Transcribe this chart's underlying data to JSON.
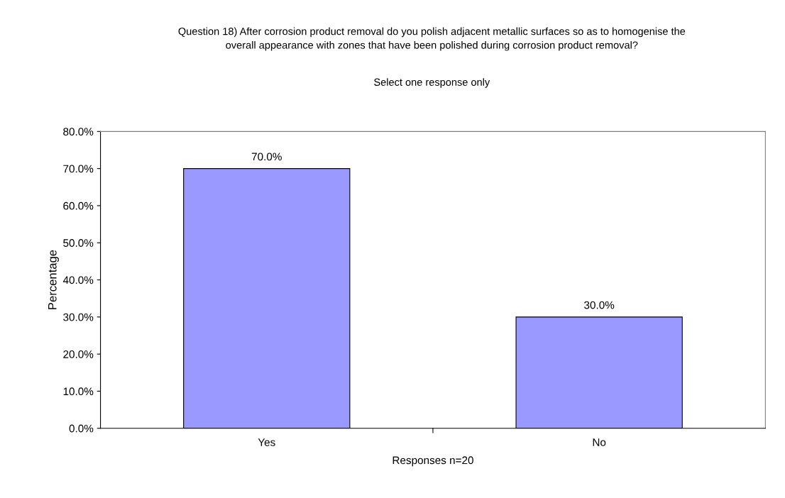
{
  "chart_data": {
    "type": "bar",
    "title": "Question 18) After corrosion product removal do you polish adjacent metallic surfaces so as to homogenise the overall appearance with zones that have been polished during corrosion product removal?",
    "subtitle": "Select one response only",
    "xlabel": "Responses n=20",
    "ylabel": "Percentage",
    "categories": [
      "Yes",
      "No"
    ],
    "series": [
      {
        "color": "#9999ff",
        "values": [
          70.0,
          30.0
        ],
        "value_labels": [
          "70.0%",
          "30.0%"
        ]
      }
    ],
    "ylim": [
      0,
      80
    ],
    "yticks": [
      {
        "value": 0,
        "label": "0.0%"
      },
      {
        "value": 10,
        "label": "10.0%"
      },
      {
        "value": 20,
        "label": "20.0%"
      },
      {
        "value": 30,
        "label": "30.0%"
      },
      {
        "value": 40,
        "label": "40.0%"
      },
      {
        "value": 50,
        "label": "50.0%"
      },
      {
        "value": 60,
        "label": "60.0%"
      },
      {
        "value": 70,
        "label": "70.0%"
      },
      {
        "value": 80,
        "label": "80.0%"
      }
    ],
    "grid": false
  }
}
